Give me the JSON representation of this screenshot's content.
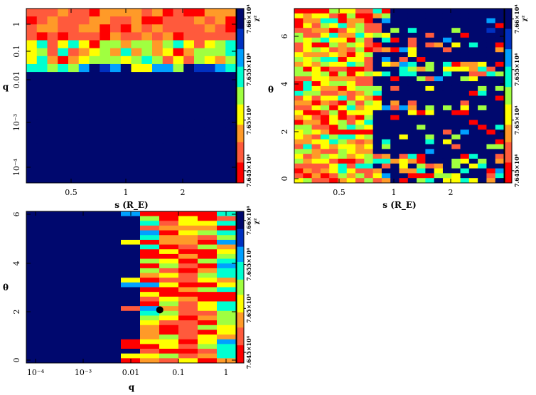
{
  "chart_data": [
    {
      "type": "heatmap",
      "xlabel": "s (R_E)",
      "ylabel": "q",
      "x_scale": "log",
      "y_scale": "log",
      "xlim": [
        0.3,
        5.0
      ],
      "ylim": [
        8e-05,
        2.0
      ],
      "x_tick_labels": [
        "0.5",
        "1",
        "2"
      ],
      "y_tick_labels": [
        "1",
        "0.1",
        "0.01",
        "10⁻³",
        "10⁻⁴"
      ],
      "colorbar_label": "χ²",
      "colorbar_tick_labels": [
        "7.645×10⁴",
        "7.65×10⁴",
        "7.655×10⁴",
        "7.66×10⁴"
      ],
      "colorbar_range": [
        76450.0,
        76600.0
      ],
      "description_values": "low q (<0.01) uniformly at/above max chi2; minimum chi2 band near q 0.1–1 across s"
    },
    {
      "type": "heatmap",
      "xlabel": "s (R_E)",
      "ylabel": "θ",
      "x_scale": "log",
      "xlim": [
        0.3,
        5.0
      ],
      "ylim": [
        0,
        6.28
      ],
      "x_tick_labels": [
        "0.5",
        "1",
        "2"
      ],
      "y_tick_labels": [
        "0",
        "2",
        "4",
        "6"
      ],
      "colorbar_label": "χ²",
      "colorbar_tick_labels": [
        "7.645×10⁴",
        "7.65×10⁴",
        "7.655×10⁴",
        "7.66×10⁴"
      ],
      "colorbar_range": [
        76450.0,
        76600.0
      ]
    },
    {
      "type": "heatmap",
      "xlabel": "q",
      "ylabel": "θ",
      "x_scale": "log",
      "xlim": [
        5e-05,
        3.0
      ],
      "ylim": [
        0,
        6.28
      ],
      "x_tick_labels": [
        "10⁻⁴",
        "10⁻³",
        "0.01",
        "0.1",
        "1"
      ],
      "y_tick_labels": [
        "0",
        "2",
        "4",
        "6"
      ],
      "colorbar_label": "χ²",
      "colorbar_tick_labels": [
        "7.645×10⁴",
        "7.65×10⁴",
        "7.655×10⁴",
        "7.66×10⁴"
      ],
      "colorbar_range": [
        76450.0,
        76600.0
      ],
      "best_fit_marker": {
        "q": 0.055,
        "theta": 2.2
      }
    }
  ],
  "colors": {
    "background_max": "#00086e",
    "palette": [
      "#ff0000",
      "#ff5a3c",
      "#ff9a28",
      "#ffff00",
      "#a0ff40",
      "#00ffd0",
      "#00a0ff",
      "#0030c0",
      "#00086e"
    ]
  }
}
